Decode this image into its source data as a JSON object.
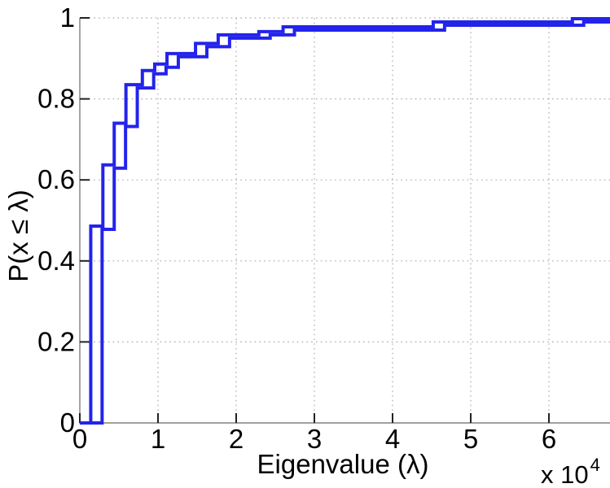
{
  "figure": {
    "type": "matlab-style-ecdf-plot",
    "background": "#ffffff"
  },
  "chart_data": {
    "type": "line",
    "subtype": "ecdf-staircase",
    "title": "",
    "xlabel": "Eigenvalue (λ)",
    "ylabel": "P(x ≤ λ)",
    "x_axis_multiplier": {
      "base": "x 10",
      "exponent": "4"
    },
    "x_unit_scale": 10000,
    "xlim": [
      0,
      6.78
    ],
    "ylim": [
      0,
      1
    ],
    "x_ticks": [
      0,
      1,
      2,
      3,
      4,
      5,
      6
    ],
    "x_tick_labels": [
      "0",
      "1",
      "2",
      "3",
      "4",
      "5",
      "6"
    ],
    "y_ticks": [
      0,
      0.2,
      0.4,
      0.6,
      0.8,
      1
    ],
    "y_tick_labels": [
      "0",
      "0.2",
      "0.4",
      "0.6",
      "0.8",
      "1"
    ],
    "grid": "dotted",
    "legend_position": "none",
    "line_color": "#2323eb",
    "grid_color": "#aaaaaa",
    "axis_color": "#808080",
    "tick_color": "#222222",
    "text_color": "#000000",
    "series": [
      {
        "name": "ecdf-curve-1",
        "start": [
          0,
          0
        ],
        "steps": [
          [
            0.14,
            0.486
          ],
          [
            0.295,
            0.637
          ],
          [
            0.44,
            0.74
          ],
          [
            0.59,
            0.835
          ],
          [
            0.8,
            0.87
          ],
          [
            0.958,
            0.886
          ],
          [
            1.115,
            0.912
          ],
          [
            1.48,
            0.937
          ],
          [
            1.77,
            0.958
          ],
          [
            2.29,
            0.966
          ],
          [
            2.6,
            0.978
          ],
          [
            4.52,
            0.99
          ],
          [
            6.3,
            0.998
          ]
        ]
      },
      {
        "name": "ecdf-curve-2",
        "start": [
          0,
          0
        ],
        "steps": [
          [
            0.285,
            0.478
          ],
          [
            0.44,
            0.629
          ],
          [
            0.585,
            0.732
          ],
          [
            0.735,
            0.827
          ],
          [
            0.945,
            0.862
          ],
          [
            1.103,
            0.878
          ],
          [
            1.26,
            0.904
          ],
          [
            1.625,
            0.929
          ],
          [
            1.915,
            0.95
          ],
          [
            2.435,
            0.958
          ],
          [
            2.745,
            0.97
          ],
          [
            4.665,
            0.982
          ],
          [
            6.445,
            0.99
          ]
        ]
      }
    ]
  }
}
